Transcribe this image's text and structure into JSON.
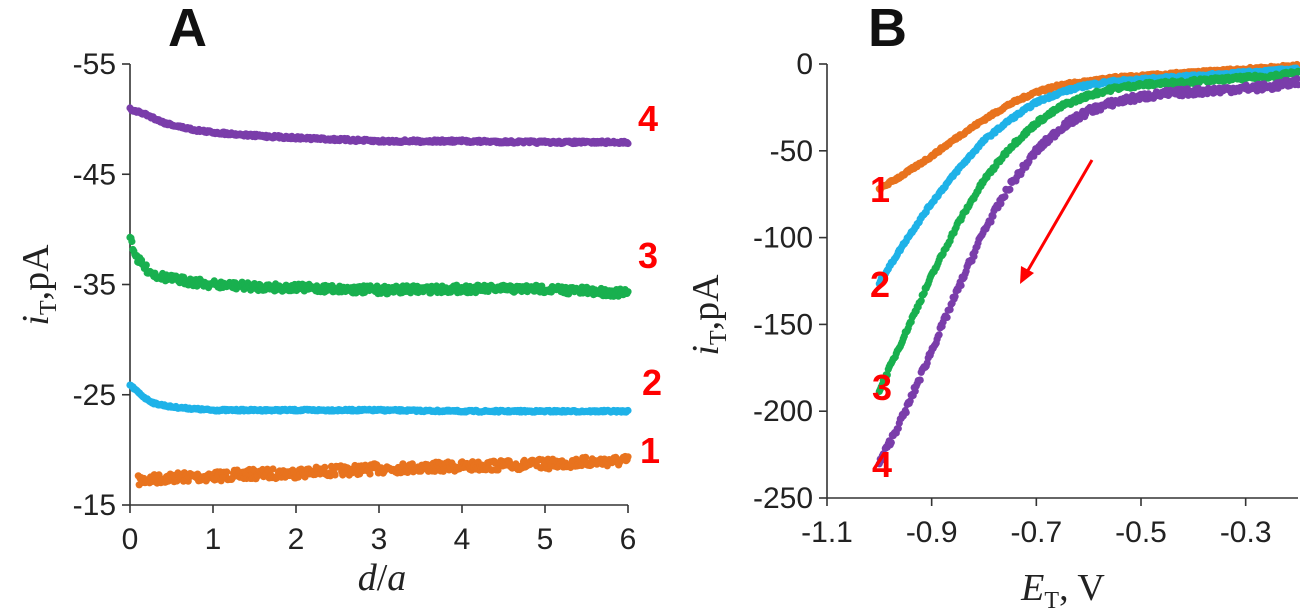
{
  "chart_data": [
    {
      "type": "scatter",
      "panel": "A",
      "xlabel": "d/a",
      "ylabel": "iT ,pA",
      "xlim": [
        0,
        6
      ],
      "ylim": [
        -15,
        -55
      ],
      "x_ticks": [
        0,
        1,
        2,
        3,
        4,
        5,
        6
      ],
      "y_ticks": [
        -15,
        -25,
        -35,
        -45,
        -55
      ],
      "grid": false,
      "series": [
        {
          "name": "1",
          "color": "#E8731E",
          "x": [
            0.1,
            0.5,
            1,
            1.5,
            2,
            2.5,
            3,
            3.5,
            4,
            4.5,
            5,
            5.5,
            6
          ],
          "y": [
            -17.2,
            -17.5,
            -17.6,
            -17.8,
            -17.9,
            -18.1,
            -18.3,
            -18.4,
            -18.5,
            -18.6,
            -18.7,
            -18.9,
            -19.0
          ]
        },
        {
          "name": "2",
          "color": "#1FB2E8",
          "x": [
            0,
            0.1,
            0.2,
            0.3,
            0.5,
            0.8,
            1,
            1.5,
            2,
            3,
            4,
            5,
            6
          ],
          "y": [
            -25.9,
            -25.2,
            -24.6,
            -24.2,
            -23.9,
            -23.7,
            -23.6,
            -23.6,
            -23.6,
            -23.6,
            -23.5,
            -23.5,
            -23.5
          ]
        },
        {
          "name": "3",
          "color": "#19B04F",
          "x": [
            0,
            0.05,
            0.1,
            0.2,
            0.3,
            0.5,
            0.8,
            1,
            1.5,
            2,
            3,
            4,
            5,
            6
          ],
          "y": [
            -39.5,
            -38,
            -37.2,
            -36.4,
            -35.9,
            -35.5,
            -35.2,
            -35.0,
            -34.8,
            -34.7,
            -34.5,
            -34.6,
            -34.6,
            -34.2
          ]
        },
        {
          "name": "4",
          "color": "#7A3DAA",
          "x": [
            0,
            0.2,
            0.4,
            0.6,
            0.8,
            1,
            1.5,
            2,
            3,
            4,
            5,
            6
          ],
          "y": [
            -50.9,
            -50.4,
            -49.7,
            -49.3,
            -49.0,
            -48.8,
            -48.5,
            -48.3,
            -48.0,
            -48.0,
            -47.9,
            -47.9
          ]
        }
      ],
      "curve_labels": [
        "1",
        "2",
        "3",
        "4"
      ]
    },
    {
      "type": "scatter",
      "panel": "B",
      "xlabel": "ET, V",
      "ylabel": "iT ,pA",
      "xlim": [
        -1.1,
        -0.2
      ],
      "ylim": [
        -250,
        0
      ],
      "x_ticks": [
        -1.1,
        -0.9,
        -0.7,
        -0.5,
        -0.3
      ],
      "y_ticks": [
        0,
        -50,
        -100,
        -150,
        -200,
        -250
      ],
      "grid": false,
      "series": [
        {
          "name": "1",
          "color": "#E8731E",
          "x": [
            -1.0,
            -0.95,
            -0.9,
            -0.85,
            -0.8,
            -0.75,
            -0.7,
            -0.65,
            -0.6,
            -0.55,
            -0.5,
            -0.45,
            -0.4,
            -0.35,
            -0.3,
            -0.25,
            -0.2
          ],
          "y": [
            -72,
            -63,
            -53,
            -42,
            -32,
            -23,
            -16,
            -12,
            -10,
            -8,
            -7,
            -6,
            -5,
            -4,
            -3,
            -2,
            -1
          ]
        },
        {
          "name": "2",
          "color": "#1FB2E8",
          "x": [
            -1.0,
            -0.95,
            -0.9,
            -0.85,
            -0.8,
            -0.75,
            -0.7,
            -0.65,
            -0.6,
            -0.55,
            -0.5,
            -0.45,
            -0.4,
            -0.35,
            -0.3,
            -0.25,
            -0.2
          ],
          "y": [
            -126,
            -102,
            -80,
            -61,
            -44,
            -32,
            -22,
            -16,
            -12,
            -10,
            -9,
            -8,
            -7,
            -6,
            -5,
            -4,
            -3
          ]
        },
        {
          "name": "3",
          "color": "#19B04F",
          "x": [
            -1.0,
            -0.95,
            -0.9,
            -0.85,
            -0.8,
            -0.75,
            -0.7,
            -0.65,
            -0.6,
            -0.55,
            -0.5,
            -0.45,
            -0.4,
            -0.35,
            -0.3,
            -0.25,
            -0.2
          ],
          "y": [
            -188,
            -155,
            -122,
            -92,
            -67,
            -48,
            -34,
            -24,
            -18,
            -14,
            -12,
            -11,
            -10,
            -9,
            -8,
            -7,
            -5
          ]
        },
        {
          "name": "4",
          "color": "#7A3DAA",
          "x": [
            -1.0,
            -0.95,
            -0.9,
            -0.85,
            -0.8,
            -0.75,
            -0.7,
            -0.65,
            -0.6,
            -0.55,
            -0.5,
            -0.45,
            -0.4,
            -0.35,
            -0.3,
            -0.25,
            -0.2
          ],
          "y": [
            -230,
            -200,
            -165,
            -130,
            -96,
            -70,
            -50,
            -36,
            -27,
            -22,
            -19,
            -17,
            -16,
            -15,
            -14,
            -13,
            -10
          ]
        }
      ],
      "curve_labels": [
        "1",
        "2",
        "3",
        "4"
      ],
      "annotation": "red arrow indicating direction of potential sweep"
    }
  ]
}
